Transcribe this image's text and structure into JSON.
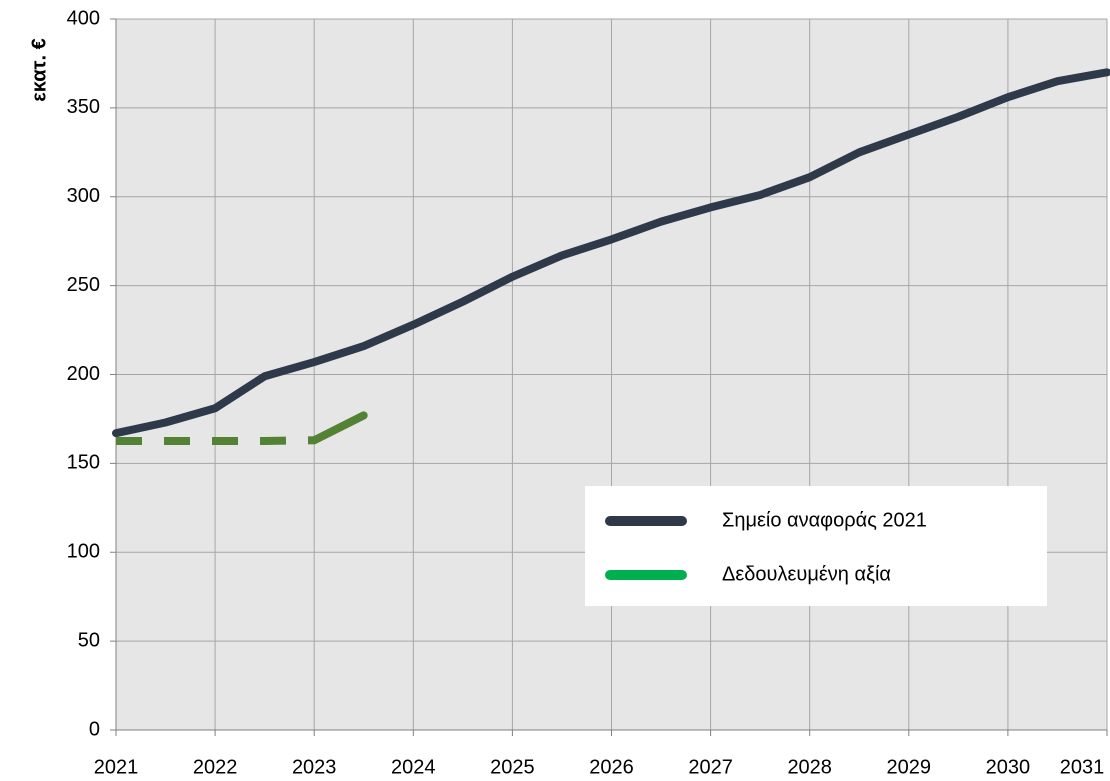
{
  "chart_data": {
    "type": "line",
    "y_label": "εκατ. €",
    "x": [
      2021,
      2021.5,
      2022,
      2022.5,
      2023,
      2023.5,
      2024,
      2024.5,
      2025,
      2025.5,
      2026,
      2026.5,
      2027,
      2027.5,
      2028,
      2028.5,
      2029,
      2029.5,
      2030,
      2030.5,
      2031
    ],
    "series": [
      {
        "name": "Σημείο αναφοράς 2021",
        "color": "#2e3a4a",
        "legend_color": "#2e3a4a",
        "values": [
          167,
          173,
          181,
          199,
          207,
          216,
          228,
          241,
          255,
          267,
          276,
          286,
          294,
          301,
          311,
          325,
          335,
          345,
          356,
          365,
          370
        ]
      },
      {
        "name": "Δεδουλευμένη αξία",
        "color": "#548235",
        "legend_color": "#00b050",
        "dashed_until": 2023,
        "values": [
          162.6,
          162.6,
          162.6,
          162.6,
          163,
          177,
          null,
          null,
          null,
          null,
          null,
          null,
          null,
          null,
          null,
          null,
          null,
          null,
          null,
          null,
          null
        ]
      }
    ],
    "xlim": [
      2021,
      2031
    ],
    "xticks": [
      2021,
      2022,
      2023,
      2024,
      2025,
      2026,
      2027,
      2028,
      2029,
      2030,
      2031
    ],
    "ylim": [
      0,
      400
    ],
    "yticks": [
      0,
      50,
      100,
      150,
      200,
      250,
      300,
      350,
      400
    ],
    "grid": true,
    "legend": "lower right"
  }
}
